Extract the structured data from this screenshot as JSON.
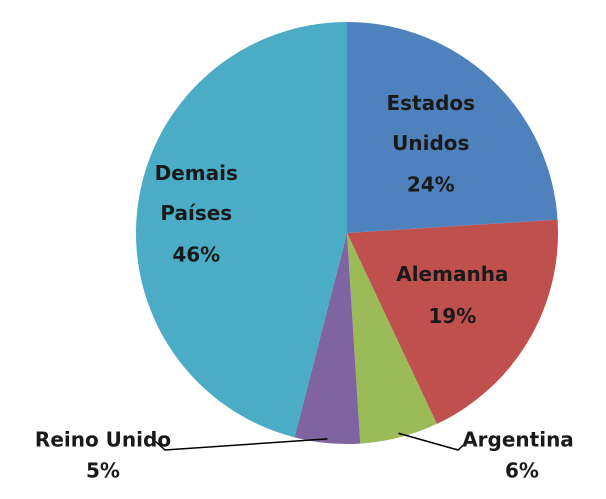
{
  "chart_data": {
    "type": "pie",
    "categories": [
      "Estados Unidos",
      "Alemanha",
      "Argentina",
      "Reino Unido",
      "Demais Países"
    ],
    "values": [
      24,
      19,
      6,
      5,
      46
    ],
    "value_labels": [
      "24%",
      "19%",
      "6%",
      "5%",
      "46%"
    ],
    "colors": [
      "#4f81bd",
      "#c0504d",
      "#9bbb59",
      "#8064a2",
      "#4bacc6"
    ]
  }
}
